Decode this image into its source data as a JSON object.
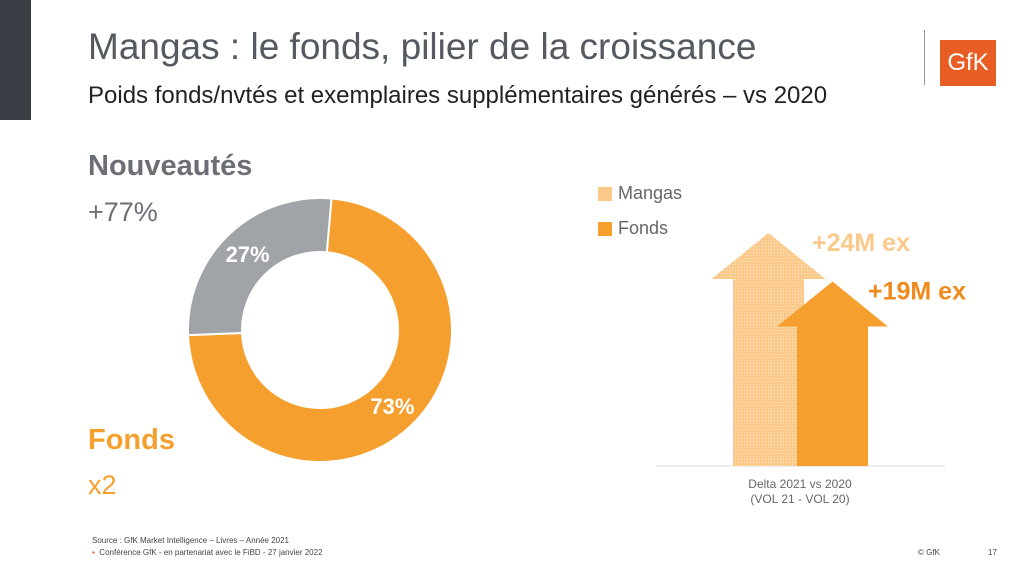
{
  "title": "Mangas : le fonds, pilier de la croissance",
  "subtitle": "Poids fonds/nvtés et exemplaires supplémentaires générés – vs 2020",
  "logo": "GfK",
  "left": {
    "nouveautes_label": "Nouveautés",
    "nouveautes_growth": "+77%",
    "fonds_label": "Fonds",
    "fonds_growth": "x2"
  },
  "chart_data": [
    {
      "type": "pie",
      "donut": true,
      "categories": [
        "Nouveautés",
        "Fonds"
      ],
      "values": [
        27,
        73
      ],
      "labels": [
        "27%",
        "73%"
      ],
      "colors": [
        "#a0a4a8",
        "#f5a02e"
      ]
    },
    {
      "type": "bar",
      "categories": [
        "Delta 2021 vs 2020"
      ],
      "category_lines": [
        "Delta 2021 vs 2020",
        "(VOL 21 - VOL 20)"
      ],
      "series": [
        {
          "name": "Mangas",
          "values": [
            24
          ],
          "label": "+24M ex",
          "color": "#fbc98a",
          "pattern": "dotted"
        },
        {
          "name": "Fonds",
          "values": [
            19
          ],
          "label": "+19M ex",
          "color": "#f5a02e"
        }
      ],
      "unit": "M ex",
      "ylim": [
        0,
        24
      ],
      "legend": "top-left",
      "shape": "arrow"
    }
  ],
  "footer": {
    "source": "Source : GfK Market Intelligence – Livres – Année 2021",
    "conference": "Conférence GfK - en partenariat avec le FiBD - 27 janvier 2022",
    "copyright": "© GfK",
    "page": "17"
  }
}
